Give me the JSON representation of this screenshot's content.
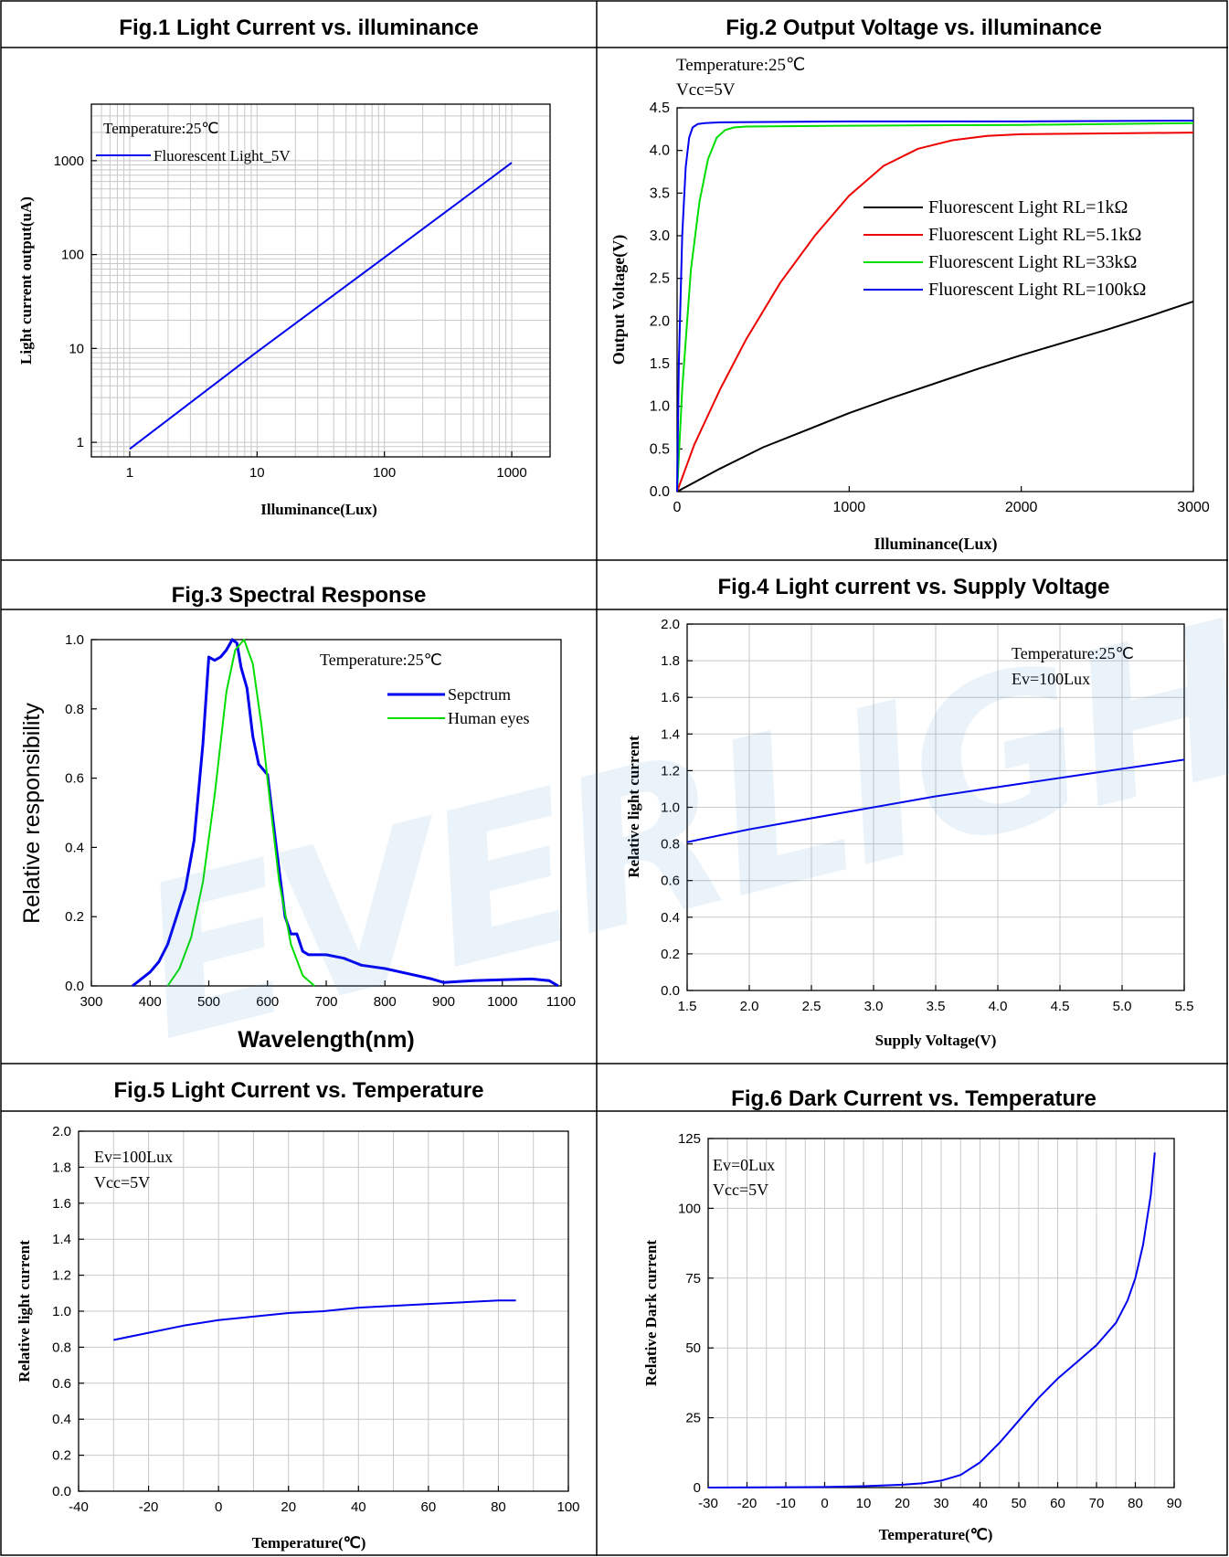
{
  "watermark": "EVERLIGHT",
  "colors": {
    "blue": "#0000ee",
    "green": "#00dd00",
    "red": "#ee0000",
    "black": "#000000",
    "grid": "#c8c8c8"
  },
  "chart_data": [
    {
      "id": "fig1",
      "header": "Fig.1    Light Current vs. illuminance",
      "type": "line",
      "xlabel": "Illuminance(Lux)",
      "ylabel": "Light current output(uA)",
      "xscale": "log",
      "yscale": "log",
      "xlim": [
        0.5,
        2000
      ],
      "ylim": [
        0.7,
        4000
      ],
      "xticks": [
        1,
        10,
        100,
        1000
      ],
      "xticklabels": [
        "1",
        "10",
        "100",
        "1000"
      ],
      "yticks": [
        1,
        10,
        100,
        1000
      ],
      "yticklabels": [
        "1",
        "10",
        "100",
        "1000"
      ],
      "grid": true,
      "annotations": [
        "Temperature:25℃"
      ],
      "legend_position": "top-left",
      "series": [
        {
          "name": "Fluorescent Light_5V",
          "color": "#0000ee",
          "x": [
            1,
            10,
            100,
            1000
          ],
          "y": [
            0.85,
            9.2,
            93,
            950
          ]
        }
      ]
    },
    {
      "id": "fig2",
      "header": "Fig.2    Output Voltage vs. illuminance",
      "type": "line",
      "xlabel": "Illuminance(Lux)",
      "ylabel": "Output Voltage(V)",
      "xlim": [
        0,
        3000
      ],
      "ylim": [
        0,
        4.5
      ],
      "xticks": [
        0,
        1000,
        2000,
        3000
      ],
      "xticklabels": [
        "0",
        "1000",
        "2000",
        "3000"
      ],
      "yticks": [
        0,
        0.5,
        1,
        1.5,
        2,
        2.5,
        3,
        3.5,
        4,
        4.5
      ],
      "yticklabels": [
        "0.0",
        "0.5",
        "1.0",
        "1.5",
        "2.0",
        "2.5",
        "3.0",
        "3.5",
        "4.0",
        "4.5"
      ],
      "grid": false,
      "annotations": [
        "Temperature:25℃",
        "Vcc=5V"
      ],
      "legend_position": "center-right",
      "series": [
        {
          "name": "Fluorescent Light RL=1kΩ",
          "color": "#000000",
          "x": [
            0,
            250,
            500,
            750,
            1000,
            1250,
            1500,
            1750,
            2000,
            2250,
            2500,
            2750,
            3000
          ],
          "y": [
            0,
            0.27,
            0.52,
            0.72,
            0.92,
            1.1,
            1.27,
            1.44,
            1.6,
            1.75,
            1.9,
            2.06,
            2.23
          ]
        },
        {
          "name": "Fluorescent Light RL=5.1kΩ",
          "color": "#ee0000",
          "x": [
            0,
            100,
            250,
            400,
            600,
            800,
            1000,
            1200,
            1400,
            1600,
            1800,
            2000,
            2500,
            3000
          ],
          "y": [
            0,
            0.55,
            1.2,
            1.78,
            2.45,
            3.0,
            3.47,
            3.82,
            4.02,
            4.12,
            4.17,
            4.19,
            4.2,
            4.21
          ]
        },
        {
          "name": "Fluorescent Light RL=33kΩ",
          "color": "#00dd00",
          "x": [
            0,
            30,
            80,
            130,
            180,
            230,
            280,
            330,
            400,
            1000,
            2000,
            3000
          ],
          "y": [
            0,
            1.2,
            2.6,
            3.4,
            3.9,
            4.15,
            4.24,
            4.27,
            4.28,
            4.29,
            4.3,
            4.32
          ]
        },
        {
          "name": "Fluorescent Light RL=100kΩ",
          "color": "#0000ee",
          "x": [
            0,
            10,
            30,
            50,
            70,
            90,
            120,
            160,
            250,
            1000,
            2000,
            3000
          ],
          "y": [
            0,
            1.5,
            3.0,
            3.8,
            4.15,
            4.27,
            4.31,
            4.32,
            4.33,
            4.34,
            4.34,
            4.35
          ]
        }
      ]
    },
    {
      "id": "fig3",
      "header": "Fig.3    Spectral Response",
      "type": "line",
      "xlabel": "Wavelength(nm)",
      "ylabel": "Relative responsibility",
      "xlim": [
        300,
        1100
      ],
      "ylim": [
        0,
        1
      ],
      "xticks": [
        300,
        400,
        500,
        600,
        700,
        800,
        900,
        1000,
        1100
      ],
      "xticklabels": [
        "300",
        "400",
        "500",
        "600",
        "700",
        "800",
        "900",
        "1000",
        "1100"
      ],
      "yticks": [
        0,
        0.2,
        0.4,
        0.6,
        0.8,
        1
      ],
      "yticklabels": [
        "0.0",
        "0.2",
        "0.4",
        "0.6",
        "0.8",
        "1.0"
      ],
      "grid": false,
      "annotations": [
        "Temperature:25℃"
      ],
      "legend_position": "top-right",
      "series": [
        {
          "name": "Sepctrum",
          "color": "#0000ee",
          "x": [
            370,
            385,
            400,
            415,
            430,
            445,
            460,
            475,
            490,
            500,
            510,
            520,
            530,
            540,
            548,
            555,
            565,
            575,
            585,
            600,
            615,
            630,
            640,
            650,
            660,
            670,
            700,
            730,
            760,
            800,
            840,
            880,
            900,
            950,
            1000,
            1050,
            1080,
            1095
          ],
          "y": [
            0,
            0.02,
            0.04,
            0.07,
            0.12,
            0.2,
            0.28,
            0.42,
            0.7,
            0.95,
            0.94,
            0.95,
            0.97,
            1.0,
            0.99,
            0.92,
            0.86,
            0.72,
            0.64,
            0.61,
            0.4,
            0.2,
            0.15,
            0.15,
            0.1,
            0.09,
            0.09,
            0.08,
            0.06,
            0.05,
            0.035,
            0.02,
            0.01,
            0.015,
            0.018,
            0.02,
            0.015,
            0
          ]
        },
        {
          "name": "Human eyes",
          "color": "#00dd00",
          "x": [
            430,
            450,
            470,
            490,
            510,
            530,
            545,
            560,
            575,
            590,
            605,
            620,
            640,
            660,
            680
          ],
          "y": [
            0,
            0.05,
            0.14,
            0.3,
            0.55,
            0.85,
            0.97,
            1.0,
            0.93,
            0.75,
            0.52,
            0.3,
            0.12,
            0.03,
            0
          ]
        }
      ]
    },
    {
      "id": "fig4",
      "header": "Fig.4 Light current vs. Supply Voltage",
      "type": "line",
      "xlabel": "Supply Voltage(V)",
      "ylabel": "Relative light current",
      "xlim": [
        1.5,
        5.5
      ],
      "ylim": [
        0,
        2
      ],
      "xticks": [
        1.5,
        2,
        2.5,
        3,
        3.5,
        4,
        4.5,
        5,
        5.5
      ],
      "xticklabels": [
        "1.5",
        "2.0",
        "2.5",
        "3.0",
        "3.5",
        "4.0",
        "4.5",
        "5.0",
        "5.5"
      ],
      "yticks": [
        0,
        0.2,
        0.4,
        0.6,
        0.8,
        1,
        1.2,
        1.4,
        1.6,
        1.8,
        2
      ],
      "yticklabels": [
        "0.0",
        "0.2",
        "0.4",
        "0.6",
        "0.8",
        "1.0",
        "1.2",
        "1.4",
        "1.6",
        "1.8",
        "2.0"
      ],
      "grid": true,
      "annotations": [
        "Temperature:25℃",
        "Ev=100Lux"
      ],
      "series": [
        {
          "name": "",
          "color": "#0000ee",
          "x": [
            1.5,
            2,
            2.5,
            3,
            3.5,
            4,
            4.5,
            5,
            5.5
          ],
          "y": [
            0.81,
            0.88,
            0.94,
            1.0,
            1.06,
            1.11,
            1.16,
            1.21,
            1.26
          ]
        }
      ]
    },
    {
      "id": "fig5",
      "header": "Fig.5    Light Current vs. Temperature",
      "type": "line",
      "xlabel": "Temperature(℃)",
      "ylabel": "Relative light current",
      "xlim": [
        -40,
        100
      ],
      "ylim": [
        0,
        2
      ],
      "xticks": [
        -40,
        -20,
        0,
        20,
        40,
        60,
        80,
        100
      ],
      "xticklabels": [
        "-40",
        "-20",
        "0",
        "20",
        "40",
        "60",
        "80",
        "100"
      ],
      "yticks": [
        0,
        0.2,
        0.4,
        0.6,
        0.8,
        1,
        1.2,
        1.4,
        1.6,
        1.8,
        2
      ],
      "yticklabels": [
        "0.0",
        "0.2",
        "0.4",
        "0.6",
        "0.8",
        "1.0",
        "1.2",
        "1.4",
        "1.6",
        "1.8",
        "2.0"
      ],
      "grid": true,
      "annotations": [
        "Ev=100Lux",
        "Vcc=5V"
      ],
      "series": [
        {
          "name": "",
          "color": "#0000ee",
          "x": [
            -30,
            -20,
            -10,
            0,
            10,
            20,
            30,
            40,
            50,
            60,
            70,
            80,
            85
          ],
          "y": [
            0.84,
            0.88,
            0.92,
            0.95,
            0.97,
            0.99,
            1.0,
            1.02,
            1.03,
            1.04,
            1.05,
            1.06,
            1.06
          ]
        }
      ]
    },
    {
      "id": "fig6",
      "header": "Fig.6    Dark Current vs. Temperature",
      "type": "line",
      "xlabel": "Temperature(℃)",
      "ylabel": "Relative Dark current",
      "xlim": [
        -30,
        90
      ],
      "ylim": [
        0,
        125
      ],
      "xticks": [
        -30,
        -20,
        -10,
        0,
        10,
        20,
        30,
        40,
        50,
        60,
        70,
        80,
        90
      ],
      "xticklabels": [
        "-30",
        "-20",
        "-10",
        "0",
        "10",
        "20",
        "30",
        "40",
        "50",
        "60",
        "70",
        "80",
        "90"
      ],
      "yticks": [
        0,
        25,
        50,
        75,
        100,
        125
      ],
      "yticklabels": [
        "0",
        "25",
        "50",
        "75",
        "100",
        "125"
      ],
      "grid": true,
      "annotations": [
        "Ev=0Lux",
        "Vcc=5V"
      ],
      "series": [
        {
          "name": "",
          "color": "#0000ee",
          "x": [
            -30,
            0,
            10,
            20,
            25,
            30,
            35,
            40,
            45,
            50,
            55,
            60,
            65,
            70,
            75,
            78,
            80,
            82,
            84,
            85
          ],
          "y": [
            0,
            0.2,
            0.5,
            1,
            1.5,
            2.5,
            4.5,
            9,
            16,
            24,
            32,
            39,
            45,
            51,
            59,
            67,
            75,
            87,
            105,
            120
          ]
        }
      ]
    }
  ]
}
